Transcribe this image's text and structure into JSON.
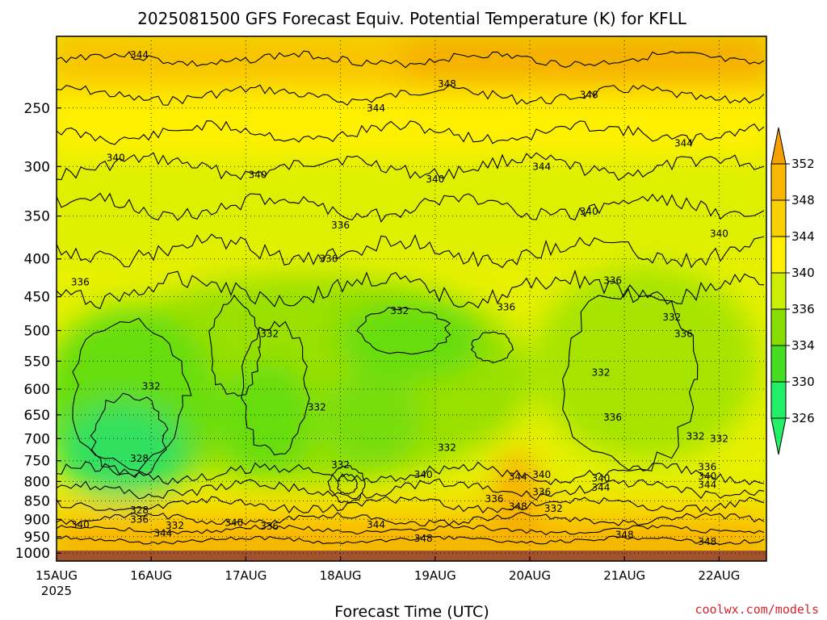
{
  "chart_data": {
    "type": "heatmap",
    "title": "2025081500 GFS Forecast Equiv. Potential Temperature (K) for KFLL",
    "xlabel": "Forecast Time (UTC)",
    "ylabel": "",
    "x_ticks": [
      "15AUG",
      "16AUG",
      "17AUG",
      "18AUG",
      "19AUG",
      "20AUG",
      "21AUG",
      "22AUG"
    ],
    "x_tick_year": "2025",
    "x_range": [
      "2025-08-15 00Z",
      "2025-08-22 12Z"
    ],
    "y_ticks": [
      250,
      300,
      350,
      400,
      450,
      500,
      550,
      600,
      650,
      700,
      750,
      800,
      850,
      900,
      950,
      1000
    ],
    "y_range_hPa": [
      1025,
      200
    ],
    "y_scale": "log (pressure)",
    "grid": true,
    "colorbar": {
      "levels": [
        352,
        348,
        344,
        340,
        336,
        334,
        330,
        326
      ],
      "colors": [
        "#f6a000",
        "#f8b800",
        "#fad000",
        "#ffee00",
        "#ccee00",
        "#88dd00",
        "#44dd22",
        "#22ee66",
        "#33ff99"
      ],
      "position": "right"
    },
    "contour_labels": [
      {
        "text": "344",
        "time": "15AUG 21Z",
        "p": 212
      },
      {
        "text": "348",
        "time": "19AUG 03Z",
        "p": 232
      },
      {
        "text": "348",
        "time": "20AUG 15Z",
        "p": 240
      },
      {
        "text": "344",
        "time": "18AUG 09Z",
        "p": 250
      },
      {
        "text": "344",
        "time": "21AUG 15Z",
        "p": 279
      },
      {
        "text": "340",
        "time": "15AUG 15Z",
        "p": 292
      },
      {
        "text": "344",
        "time": "20AUG 03Z",
        "p": 300
      },
      {
        "text": "340",
        "time": "17AUG 03Z",
        "p": 308
      },
      {
        "text": "340",
        "time": "19AUG 00Z",
        "p": 312
      },
      {
        "text": "340",
        "time": "20AUG 15Z",
        "p": 345
      },
      {
        "text": "340",
        "time": "22AUG 00Z",
        "p": 370
      },
      {
        "text": "336",
        "time": "18AUG 00Z",
        "p": 360
      },
      {
        "text": "336",
        "time": "17AUG 21Z",
        "p": 400
      },
      {
        "text": "336",
        "time": "15AUG 06Z",
        "p": 430
      },
      {
        "text": "336",
        "time": "20AUG 21Z",
        "p": 428
      },
      {
        "text": "332",
        "time": "18AUG 15Z",
        "p": 470
      },
      {
        "text": "336",
        "time": "19AUG 18Z",
        "p": 465
      },
      {
        "text": "332",
        "time": "21AUG 12Z",
        "p": 480
      },
      {
        "text": "336",
        "time": "21AUG 15Z",
        "p": 505
      },
      {
        "text": "332",
        "time": "17AUG 06Z",
        "p": 505
      },
      {
        "text": "332",
        "time": "20AUG 18Z",
        "p": 570
      },
      {
        "text": "332",
        "time": "16AUG 00Z",
        "p": 595
      },
      {
        "text": "332",
        "time": "17AUG 18Z",
        "p": 635
      },
      {
        "text": "336",
        "time": "20AUG 21Z",
        "p": 655
      },
      {
        "text": "332",
        "time": "21AUG 18Z",
        "p": 695
      },
      {
        "text": "332",
        "time": "22AUG 00Z",
        "p": 700
      },
      {
        "text": "332",
        "time": "19AUG 03Z",
        "p": 720
      },
      {
        "text": "328",
        "time": "15AUG 21Z",
        "p": 745
      },
      {
        "text": "332",
        "time": "18AUG 00Z",
        "p": 760
      },
      {
        "text": "336",
        "time": "21AUG 21Z",
        "p": 765
      },
      {
        "text": "340",
        "time": "18AUG 21Z",
        "p": 783
      },
      {
        "text": "344",
        "time": "19AUG 21Z",
        "p": 788
      },
      {
        "text": "340",
        "time": "20AUG 03Z",
        "p": 783
      },
      {
        "text": "340",
        "time": "20AUG 18Z",
        "p": 792
      },
      {
        "text": "340",
        "time": "21AUG 21Z",
        "p": 787
      },
      {
        "text": "344",
        "time": "21AUG 21Z",
        "p": 808
      },
      {
        "text": "344",
        "time": "20AUG 18Z",
        "p": 815
      },
      {
        "text": "336",
        "time": "20AUG 03Z",
        "p": 827
      },
      {
        "text": "336",
        "time": "19AUG 15Z",
        "p": 845
      },
      {
        "text": "348",
        "time": "19AUG 21Z",
        "p": 865
      },
      {
        "text": "332",
        "time": "20AUG 06Z",
        "p": 870
      },
      {
        "text": "328",
        "time": "15AUG 21Z",
        "p": 875
      },
      {
        "text": "336",
        "time": "15AUG 21Z",
        "p": 900
      },
      {
        "text": "340",
        "time": "15AUG 06Z",
        "p": 915
      },
      {
        "text": "332",
        "time": "16AUG 06Z",
        "p": 918
      },
      {
        "text": "340",
        "time": "16AUG 21Z",
        "p": 910
      },
      {
        "text": "336",
        "time": "17AUG 06Z",
        "p": 920
      },
      {
        "text": "344",
        "time": "18AUG 09Z",
        "p": 915
      },
      {
        "text": "344",
        "time": "16AUG 03Z",
        "p": 940
      },
      {
        "text": "348",
        "time": "18AUG 21Z",
        "p": 955
      },
      {
        "text": "348",
        "time": "21AUG 00Z",
        "p": 945
      },
      {
        "text": "348",
        "time": "21AUG 21Z",
        "p": 965
      }
    ]
  },
  "credit": "coolwx.com/models"
}
